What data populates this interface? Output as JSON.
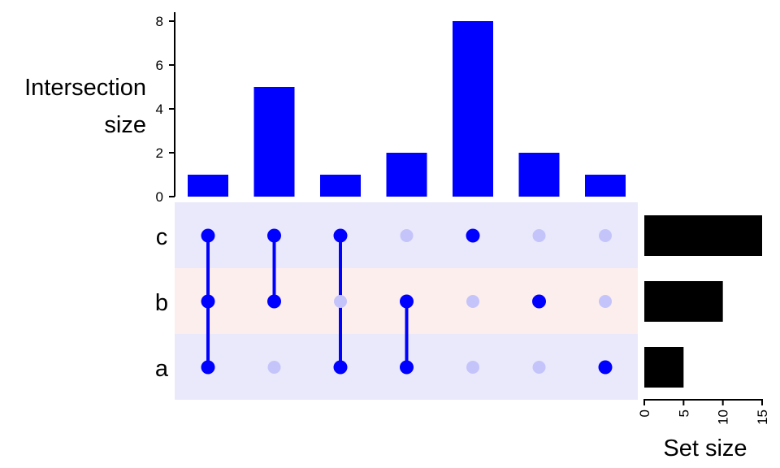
{
  "chart_data": {
    "type": "upset",
    "sets": [
      {
        "name": "c",
        "size": 15
      },
      {
        "name": "b",
        "size": 10
      },
      {
        "name": "a",
        "size": 5
      }
    ],
    "intersections": [
      {
        "members": [
          "c",
          "b",
          "a"
        ],
        "size": 1
      },
      {
        "members": [
          "c",
          "b"
        ],
        "size": 5
      },
      {
        "members": [
          "c",
          "a"
        ],
        "size": 1
      },
      {
        "members": [
          "b",
          "a"
        ],
        "size": 2
      },
      {
        "members": [
          "c"
        ],
        "size": 8
      },
      {
        "members": [
          "b"
        ],
        "size": 2
      },
      {
        "members": [
          "a"
        ],
        "size": 1
      }
    ],
    "intersection_axis": {
      "label_lines": [
        "Intersection",
        "size"
      ],
      "range": [
        0,
        8
      ],
      "ticks": [
        0,
        2,
        4,
        6,
        8
      ]
    },
    "set_size_axis": {
      "label": "Set size",
      "range": [
        0,
        15
      ],
      "ticks": [
        0,
        5,
        10,
        15
      ]
    },
    "colors": {
      "intersection_bars": "#0000ff",
      "set_bars": "#000000",
      "dot_active": "#0000ff",
      "dot_inactive": "#c4c4fb",
      "stripe_c": "#e9e9fb",
      "stripe_b": "#fdeeee",
      "stripe_a": "#e9e9fb"
    }
  }
}
